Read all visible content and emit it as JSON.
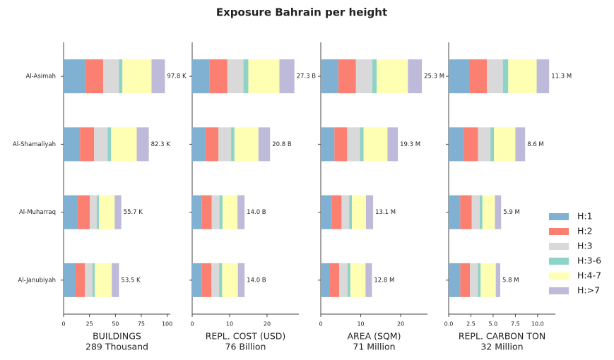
{
  "chart_data": [
    {
      "type": "barh",
      "title": "Exposure Bahrain per height",
      "categories": [
        "Al-Asimah",
        "Al-Shamaliyah",
        "Al-Muharraq",
        "Al-Janubiyah"
      ],
      "series": [
        {
          "name": "H:1",
          "color": "#80b1d3",
          "values": [
            21.2,
            15.8,
            13.7,
            11.6
          ]
        },
        {
          "name": "H:2",
          "color": "#fb8072",
          "values": [
            17.1,
            13.7,
            11.6,
            8.9
          ]
        },
        {
          "name": "H:3",
          "color": "#d9d9d9",
          "values": [
            15.1,
            13.0,
            6.8,
            7.5
          ]
        },
        {
          "name": "H:3-6",
          "color": "#8dd3c7",
          "values": [
            3.4,
            3.4,
            2.1,
            2.1
          ]
        },
        {
          "name": "H:4-7",
          "color": "#ffffb3",
          "values": [
            28.1,
            24.7,
            15.1,
            16.4
          ]
        },
        {
          "name": "H:>7",
          "color": "#bebada",
          "values": [
            12.9,
            11.7,
            6.4,
            7.0
          ]
        }
      ],
      "totals": [
        97.8,
        82.3,
        55.7,
        53.5
      ],
      "total_labels": [
        "97.8 K",
        "82.3 K",
        "55.7 K",
        "53.5 K"
      ],
      "xlabel": [
        "BUILDINGS",
        "289 Thousand"
      ],
      "xlim": [
        0,
        103
      ],
      "xticks": [
        0,
        25,
        50,
        75,
        100
      ],
      "legend": "right"
    },
    {
      "type": "barh",
      "series": [
        {
          "values": [
            4.7,
            3.6,
            2.6,
            2.5
          ]
        },
        {
          "values": [
            4.7,
            3.4,
            2.6,
            2.6
          ]
        },
        {
          "values": [
            4.3,
            3.4,
            2.1,
            2.1
          ]
        },
        {
          "values": [
            1.3,
            0.9,
            0.8,
            0.8
          ]
        },
        {
          "values": [
            8.3,
            6.4,
            4.0,
            4.2
          ]
        },
        {
          "values": [
            4.0,
            3.1,
            1.9,
            1.8
          ]
        }
      ],
      "totals": [
        27.3,
        20.8,
        14.0,
        14.0
      ],
      "total_labels": [
        "27.3 B",
        "20.8 B",
        "14.0 B",
        "14.0 B"
      ],
      "xlabel": [
        "REPL. COST (USD)",
        "76 Billion"
      ],
      "xlim": [
        0,
        28.5
      ],
      "xticks": [
        0,
        10,
        20
      ]
    },
    {
      "type": "barh",
      "series": [
        {
          "values": [
            4.4,
            3.4,
            2.7,
            2.3
          ]
        },
        {
          "values": [
            4.4,
            3.2,
            2.5,
            2.3
          ]
        },
        {
          "values": [
            4.1,
            3.2,
            1.9,
            2.1
          ]
        },
        {
          "values": [
            1.1,
            0.9,
            0.7,
            0.7
          ]
        },
        {
          "values": [
            7.8,
            6.0,
            3.5,
            3.8
          ]
        },
        {
          "values": [
            3.5,
            2.6,
            1.8,
            1.6
          ]
        }
      ],
      "totals": [
        25.3,
        19.3,
        13.1,
        12.8
      ],
      "total_labels": [
        "25.3 M",
        "19.3 M",
        "13.1 M",
        "12.8 M"
      ],
      "xlabel": [
        "AREA (SQM)",
        "71 Million"
      ],
      "xlim": [
        0,
        26.7
      ],
      "xticks": [
        0,
        10,
        20
      ]
    },
    {
      "type": "barh",
      "series": [
        {
          "values": [
            2.3,
            1.7,
            1.3,
            1.3
          ]
        },
        {
          "values": [
            2.0,
            1.6,
            1.3,
            1.1
          ]
        },
        {
          "values": [
            1.8,
            1.4,
            0.9,
            0.9
          ]
        },
        {
          "values": [
            0.6,
            0.4,
            0.3,
            0.3
          ]
        },
        {
          "values": [
            3.2,
            2.4,
            1.4,
            1.7
          ]
        },
        {
          "values": [
            1.4,
            1.1,
            0.7,
            0.5
          ]
        }
      ],
      "totals": [
        11.3,
        8.6,
        5.9,
        5.8
      ],
      "total_labels": [
        "11.3 M",
        "8.6 M",
        "5.9 M",
        "5.8 M"
      ],
      "xlabel": [
        "REPL. CARBON TON",
        "32 Million"
      ],
      "xlim": [
        0,
        12
      ],
      "xticks": [
        {
          "value": 0,
          "label": "0.0"
        },
        {
          "value": 2.5,
          "label": "2.5"
        },
        {
          "value": 5,
          "label": "5.0"
        },
        {
          "value": 7.5,
          "label": "7.5"
        },
        {
          "value": 10,
          "label": "10.0"
        }
      ]
    }
  ]
}
